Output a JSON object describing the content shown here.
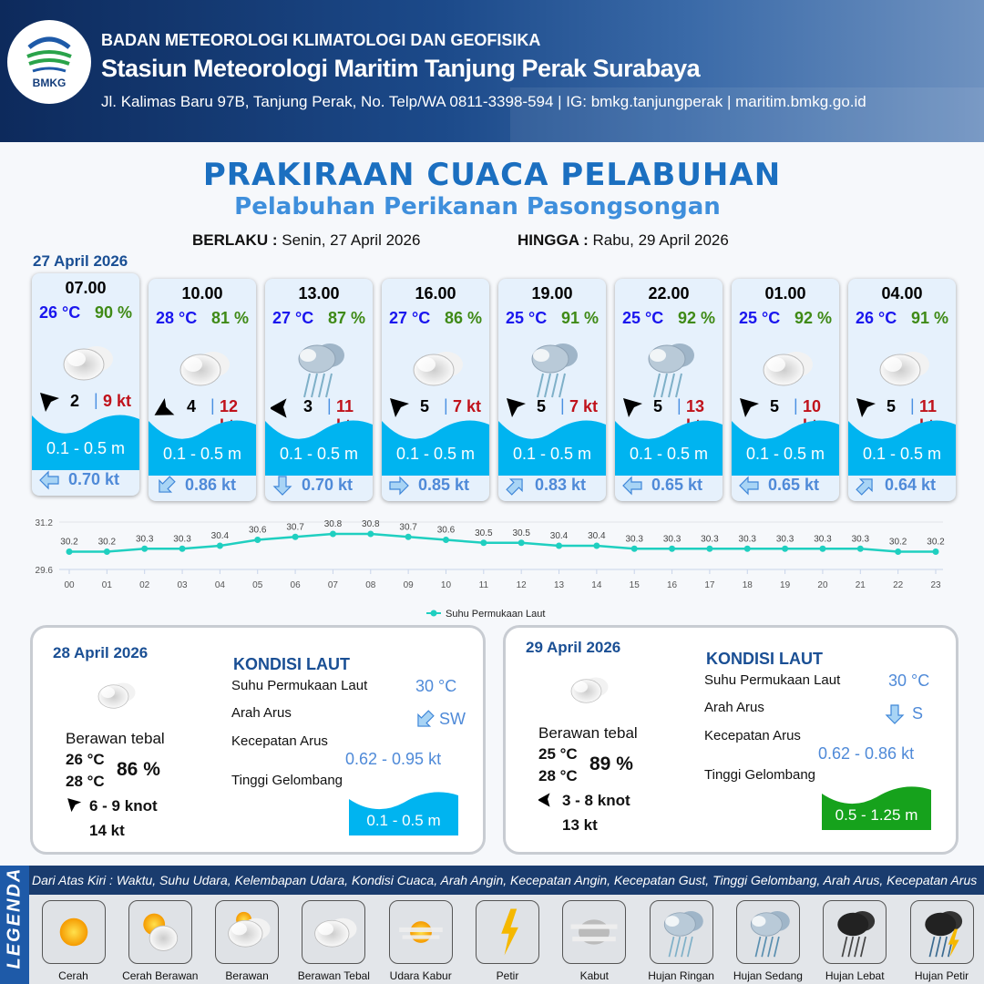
{
  "header": {
    "org": "BADAN METEOROLOGI KLIMATOLOGI DAN GEOFISIKA",
    "station": "Stasiun Meteorologi Maritim Tanjung Perak Surabaya",
    "address": "Jl. Kalimas Baru 97B, Tanjung Perak, No. Telp/WA 0811-3398-594 | IG: bmkg.tanjungperak | maritim.bmkg.go.id",
    "logo_text": "BMKG"
  },
  "title": "PRAKIRAAN CUACA PELABUHAN",
  "subtitle": "Pelabuhan Perikanan Pasongsongan",
  "validity": {
    "from_label": "BERLAKU :",
    "from": "Senin, 27 April 2026",
    "to_label": "HINGGA :",
    "to": "Rabu, 29 April 2026"
  },
  "day1": {
    "date": "27 April 2026",
    "cards": [
      {
        "time": "07.00",
        "temp": "26 °C",
        "hum": "90 %",
        "icon": "berawan-tebal",
        "wind_dir_deg": 315,
        "wind": "2",
        "gust": "9 kt",
        "wave": "0.1 - 0.5 m",
        "cur_dir_deg": 270,
        "cur": "0.70 kt"
      },
      {
        "time": "10.00",
        "temp": "28 °C",
        "hum": "81 %",
        "icon": "berawan-tebal",
        "wind_dir_deg": 240,
        "wind": "4",
        "gust": "12 kt",
        "wave": "0.1 - 0.5 m",
        "cur_dir_deg": 225,
        "cur": "0.86 kt"
      },
      {
        "time": "13.00",
        "temp": "27 °C",
        "hum": "87 %",
        "icon": "hujan-ringan",
        "wind_dir_deg": 270,
        "wind": "3",
        "gust": "11 kt",
        "wave": "0.1 - 0.5 m",
        "cur_dir_deg": 180,
        "cur": "0.70 kt"
      },
      {
        "time": "16.00",
        "temp": "27 °C",
        "hum": "86 %",
        "icon": "berawan-tebal",
        "wind_dir_deg": 315,
        "wind": "5",
        "gust": "7 kt",
        "wave": "0.1 - 0.5 m",
        "cur_dir_deg": 90,
        "cur": "0.85 kt"
      },
      {
        "time": "19.00",
        "temp": "25 °C",
        "hum": "91 %",
        "icon": "hujan-ringan",
        "wind_dir_deg": 315,
        "wind": "5",
        "gust": "7 kt",
        "wave": "0.1 - 0.5 m",
        "cur_dir_deg": 45,
        "cur": "0.83 kt"
      },
      {
        "time": "22.00",
        "temp": "25 °C",
        "hum": "92 %",
        "icon": "hujan-ringan",
        "wind_dir_deg": 315,
        "wind": "5",
        "gust": "13 kt",
        "wave": "0.1 - 0.5 m",
        "cur_dir_deg": 270,
        "cur": "0.65 kt"
      },
      {
        "time": "01.00",
        "temp": "25 °C",
        "hum": "92 %",
        "icon": "berawan-tebal",
        "wind_dir_deg": 315,
        "wind": "5",
        "gust": "10 kt",
        "wave": "0.1 - 0.5 m",
        "cur_dir_deg": 270,
        "cur": "0.65 kt"
      },
      {
        "time": "04.00",
        "temp": "26 °C",
        "hum": "91 %",
        "icon": "berawan-tebal",
        "wind_dir_deg": 315,
        "wind": "5",
        "gust": "11 kt",
        "wave": "0.1 - 0.5 m",
        "cur_dir_deg": 45,
        "cur": "0.64 kt"
      }
    ]
  },
  "chart_data": {
    "type": "line",
    "x": [
      "00",
      "01",
      "02",
      "03",
      "04",
      "05",
      "06",
      "07",
      "08",
      "09",
      "10",
      "11",
      "12",
      "13",
      "14",
      "15",
      "16",
      "17",
      "18",
      "19",
      "20",
      "21",
      "22",
      "23"
    ],
    "series": [
      {
        "name": "Suhu Permukaan Laut",
        "values": [
          30.2,
          30.2,
          30.3,
          30.3,
          30.4,
          30.6,
          30.7,
          30.8,
          30.8,
          30.7,
          30.6,
          30.5,
          30.5,
          30.4,
          30.4,
          30.3,
          30.3,
          30.3,
          30.3,
          30.3,
          30.3,
          30.3,
          30.2,
          30.2
        ],
        "color": "#1fcfc0"
      }
    ],
    "ylim": [
      29.6,
      31.2
    ],
    "yticks": [
      "29.6",
      "31.2"
    ],
    "legend": "bottom-center",
    "grid": true
  },
  "day2": {
    "date": "28 April 2026",
    "condition": "Berawan tebal",
    "tmin": "26 °C",
    "tmax": "28 °C",
    "hum": "86 %",
    "wind": "6 - 9 knot",
    "wind_dir_deg": 315,
    "gust": "14 kt",
    "sea_title": "KONDISI LAUT",
    "sst_label": "Suhu Permukaan Laut",
    "sst": "30 °C",
    "cur_dir_label": "Arah Arus",
    "cur_dir": "SW",
    "cur_dir_deg": 225,
    "cur_speed_label": "Kecepatan Arus",
    "cur_speed": "0.62  - 0.95 kt",
    "wave_label": "Tinggi Gelombang",
    "wave": "0.1 - 0.5 m",
    "wave_color": "#00b4f0"
  },
  "day3": {
    "date": "29 April 2026",
    "condition": "Berawan tebal",
    "tmin": "25 °C",
    "tmax": "28 °C",
    "hum": "89 %",
    "wind": "3 - 8 knot",
    "wind_dir_deg": 270,
    "gust": "13 kt",
    "sea_title": "KONDISI LAUT",
    "sst_label": "Suhu Permukaan Laut",
    "sst": "30 °C",
    "cur_dir_label": "Arah Arus",
    "cur_dir": "S",
    "cur_dir_deg": 180,
    "cur_speed_label": "Kecepatan Arus",
    "cur_speed": "0.62 - 0.86 kt",
    "wave_label": "Tinggi Gelombang",
    "wave": "0.5 - 1.25 m",
    "wave_color": "#16a21c"
  },
  "legend": {
    "title": "LEGENDA",
    "caption": "Dari Atas Kiri : Waktu, Suhu Udara, Kelembapan Udara, Kondisi Cuaca, Arah Angin, Kecepatan Angin, Kecepatan Gust, Tinggi Gelombang, Arah Arus, Kecepatan Arus",
    "items": [
      {
        "label": "Cerah",
        "icon": "cerah"
      },
      {
        "label": "Cerah Berawan",
        "icon": "cerah-berawan"
      },
      {
        "label": "Berawan",
        "icon": "berawan"
      },
      {
        "label": "Berawan Tebal",
        "icon": "berawan-tebal"
      },
      {
        "label": "Udara Kabur",
        "icon": "udara-kabur"
      },
      {
        "label": "Petir",
        "icon": "petir"
      },
      {
        "label": "Kabut",
        "icon": "kabut"
      },
      {
        "label": "Hujan Ringan",
        "icon": "hujan-ringan"
      },
      {
        "label": "Hujan Sedang",
        "icon": "hujan-sedang"
      },
      {
        "label": "Hujan Lebat",
        "icon": "hujan-lebat"
      },
      {
        "label": "Hujan Petir",
        "icon": "hujan-petir"
      }
    ]
  }
}
